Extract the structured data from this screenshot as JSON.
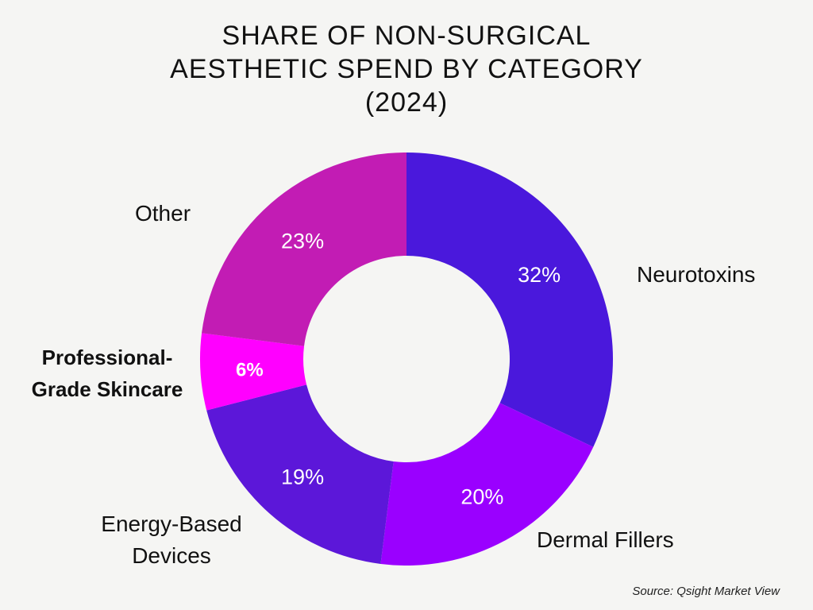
{
  "chart_data": {
    "type": "pie",
    "title_lines": [
      "SHARE OF NON-SURGICAL",
      "AESTHETIC SPEND BY CATEGORY",
      "(2024)"
    ],
    "slices": [
      {
        "label": "Neurotoxins",
        "value": 32,
        "display": "32%",
        "color": "#4a18dc"
      },
      {
        "label": "Dermal Fillers",
        "value": 20,
        "display": "20%",
        "color": "#9a00ff"
      },
      {
        "label": "Energy-Based Devices",
        "label_lines": [
          "Energy-Based",
          "Devices"
        ],
        "value": 19,
        "display": "19%",
        "color": "#5c17d9"
      },
      {
        "label": "Professional-Grade Skincare",
        "label_lines": [
          "Professional-",
          "Grade Skincare"
        ],
        "value": 6,
        "display": "6%",
        "color": "#ff00ff"
      },
      {
        "label": "Other",
        "value": 23,
        "display": "23%",
        "color": "#c21cb4"
      }
    ],
    "source": "Source: Qsight Market View"
  }
}
